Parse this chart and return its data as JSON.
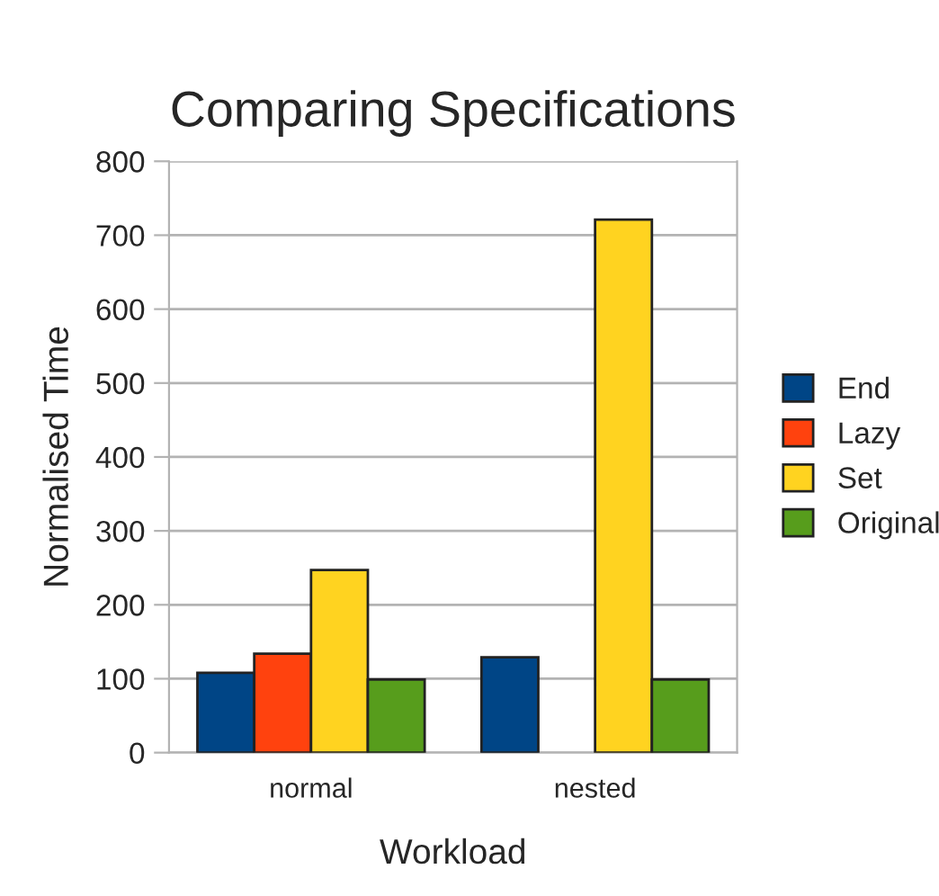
{
  "chart_data": {
    "type": "bar",
    "title": "Comparing Specifications",
    "xlabel": "Workload",
    "ylabel": "Normalised Time",
    "categories": [
      "normal",
      "nested"
    ],
    "series": [
      {
        "name": "End",
        "color": "#004586",
        "values": [
          108,
          129
        ]
      },
      {
        "name": "Lazy",
        "color": "#ff420e",
        "values": [
          134,
          null
        ]
      },
      {
        "name": "Set",
        "color": "#ffd320",
        "values": [
          247,
          721
        ]
      },
      {
        "name": "Original",
        "color": "#579d1c",
        "values": [
          99,
          99
        ]
      }
    ],
    "ylim": [
      0,
      800
    ],
    "yticks": [
      0,
      100,
      200,
      300,
      400,
      500,
      600,
      700,
      800
    ],
    "grid": "y",
    "legend": "right"
  }
}
